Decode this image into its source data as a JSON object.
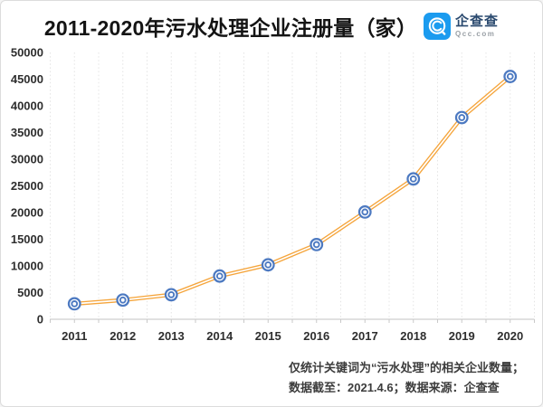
{
  "header": {
    "title": "2011-2020年污水处理企业注册量（家）",
    "logo": {
      "brand": "企查查",
      "domain": "Qcc.com"
    }
  },
  "footer": {
    "line1": "仅统计关键词为“污水处理”的相关企业数量；",
    "line2": "数据截至：2021.4.6；数据来源：企查查"
  },
  "colors": {
    "line_orange": "#F5A53C",
    "marker_blue": "#4C79C1",
    "logo_blue": "#1B9BEF",
    "brand_text": "#2B4A6F",
    "axis_line": "#cfcfcf",
    "grid_line": "#e4e4e4",
    "tick_mark": "#c9c9c9"
  },
  "chart_data": {
    "type": "line",
    "title": "2011-2020年污水处理企业注册量（家）",
    "categories": [
      "2011",
      "2012",
      "2013",
      "2014",
      "2015",
      "2016",
      "2017",
      "2018",
      "2019",
      "2020"
    ],
    "series": [
      {
        "name": "污水处理企业注册量（家）",
        "values": [
          2900,
          3600,
          4600,
          8100,
          10200,
          14000,
          20100,
          26300,
          37800,
          45500
        ]
      }
    ],
    "ylim": [
      0,
      50000
    ],
    "ytick_step": 5000,
    "xlabel": "",
    "ylabel": "",
    "grid": "vertical-dotted-minor-half-step",
    "legend": "none",
    "marker": "double-ring-circle",
    "line_style": "double-stroke"
  }
}
